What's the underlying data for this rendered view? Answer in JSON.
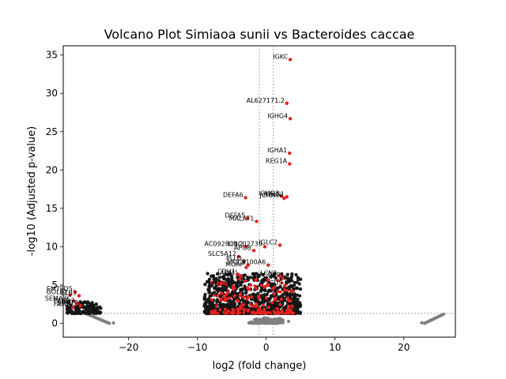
{
  "chart_data": {
    "type": "scatter",
    "title": "Volcano Plot Simiaoa sunii vs Bacteroides caccae",
    "xlabel": "log2 (fold change)",
    "ylabel": "-log10 (Adjusted p-value)",
    "xlim": [
      -29.5,
      27.5
    ],
    "ylim": [
      -1.8,
      36.2
    ],
    "xticks": [
      -20,
      -10,
      0,
      10,
      20
    ],
    "yticks": [
      0,
      5,
      10,
      15,
      20,
      25,
      30,
      35
    ],
    "grid": false,
    "reference_lines": {
      "vertical": [
        -1,
        1
      ],
      "horizontal": [
        1.3
      ]
    },
    "colors": {
      "significant": "#e8201d",
      "not_significant": "#808080",
      "threshold_line": "#888888"
    },
    "series": [
      {
        "role": "significant",
        "points": [
          {
            "x": 3.5,
            "y": 34.4,
            "label": "IGKC"
          },
          {
            "x": 3.0,
            "y": 28.7,
            "label": "AL627171.2"
          },
          {
            "x": 3.5,
            "y": 26.7,
            "label": "IGHG4"
          },
          {
            "x": 3.4,
            "y": 22.2,
            "label": "IGHA1"
          },
          {
            "x": 3.4,
            "y": 20.8,
            "label": "REG1A"
          },
          {
            "x": -3.0,
            "y": 16.4,
            "label": "DEFA6"
          },
          {
            "x": 2.2,
            "y": 16.6,
            "label": "IGHG3"
          },
          {
            "x": 3.0,
            "y": 16.5,
            "label": "IGHG1"
          },
          {
            "x": 2.6,
            "y": 16.3,
            "label": "JCHAIN"
          },
          {
            "x": -2.7,
            "y": 13.7,
            "label": "DEFA5"
          },
          {
            "x": -1.4,
            "y": 13.3,
            "label": "MALAT1"
          },
          {
            "x": -0.2,
            "y": 10.0,
            "label": "LINC02739"
          },
          {
            "x": 2.0,
            "y": 10.2,
            "label": "IGLC2"
          },
          {
            "x": -3.0,
            "y": 10.0,
            "label": "AC092803.2"
          },
          {
            "x": -1.8,
            "y": 9.5,
            "label": "APOB"
          },
          {
            "x": -4.0,
            "y": 8.7,
            "label": "SLC5A12"
          },
          {
            "x": -3.2,
            "y": 8.1,
            "label": "PLLD"
          },
          {
            "x": 0.3,
            "y": 7.6,
            "label": "S100A6"
          },
          {
            "x": -2.6,
            "y": 7.6,
            "label": "MUC2"
          },
          {
            "x": -2.9,
            "y": 7.3,
            "label": "MOAP"
          },
          {
            "x": -4.1,
            "y": 6.4,
            "label": "CDH1"
          },
          {
            "x": -3.7,
            "y": 6.2,
            "label": "ADM1"
          },
          {
            "x": 1.9,
            "y": 6.2,
            "label": "LCN2"
          },
          {
            "x": 2.4,
            "y": 5.9,
            "label": "FCGBP"
          },
          {
            "x": -4.8,
            "y": 4.8,
            "label": "SLC26"
          },
          {
            "x": -5.5,
            "y": 4.1,
            "label": "SLC"
          },
          {
            "x": 2.7,
            "y": 4.9,
            "label": "CD5"
          },
          {
            "x": -27.8,
            "y": 4.1,
            "label": "EMTPD5"
          },
          {
            "x": -28.5,
            "y": 3.7,
            "label": "GOLE2"
          },
          {
            "x": -27.2,
            "y": 3.6,
            "label": "ELB3"
          },
          {
            "x": -28.0,
            "y": 2.9,
            "label": "SEMA3C"
          },
          {
            "x": -27.5,
            "y": 2.6,
            "label": "PARD3"
          },
          {
            "x": -28.1,
            "y": 2.1,
            "label": "FAM9"
          },
          {
            "x": -27.0,
            "y": 2.3,
            "label": "SMRTP"
          }
        ]
      },
      {
        "role": "not_significant",
        "points": []
      }
    ]
  }
}
